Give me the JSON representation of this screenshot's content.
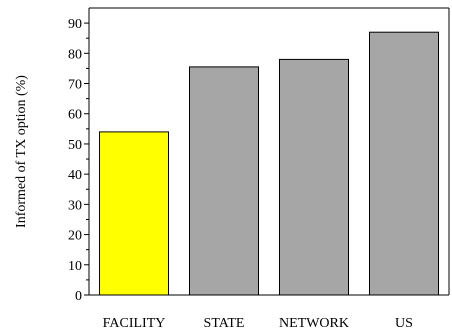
{
  "chart_data": {
    "type": "bar",
    "categories": [
      "FACILITY",
      "STATE",
      "NETWORK",
      "US"
    ],
    "values": [
      54,
      75.5,
      78,
      87
    ],
    "bar_colors": [
      "#ffff00",
      "#a6a6a6",
      "#a6a6a6",
      "#a6a6a6"
    ],
    "bar_edge_color": "#000000",
    "ylabel": "Informed of TX option (%)",
    "xlabel": "",
    "ylim": [
      0,
      95
    ],
    "yticks": [
      0,
      10,
      20,
      30,
      40,
      50,
      60,
      70,
      80,
      90
    ],
    "minor_ticks": true,
    "grid": false,
    "legend": "none"
  }
}
